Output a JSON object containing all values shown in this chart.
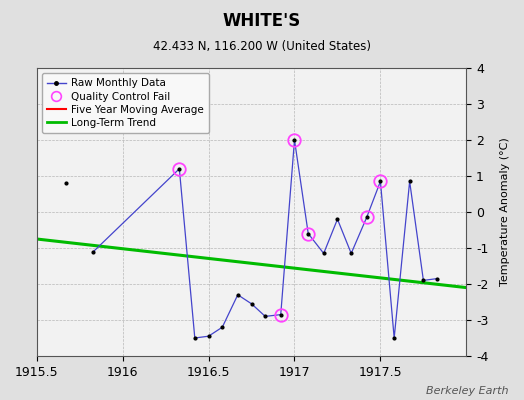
{
  "title": "WHITE'S",
  "subtitle": "42.433 N, 116.200 W (United States)",
  "ylabel": "Temperature Anomaly (°C)",
  "watermark": "Berkeley Earth",
  "xlim": [
    1915.5,
    1918.0
  ],
  "ylim": [
    -4,
    4
  ],
  "background_color": "#e0e0e0",
  "plot_bg_color": "#f2f2f2",
  "isolated_x": [
    1915.67
  ],
  "isolated_y": [
    0.8
  ],
  "connected_x": [
    1915.83,
    1916.33,
    1916.42,
    1916.5,
    1916.58,
    1916.67,
    1916.75,
    1916.83,
    1916.92,
    1917.0,
    1917.08,
    1917.17,
    1917.25,
    1917.33,
    1917.42,
    1917.5,
    1917.58,
    1917.67,
    1917.75,
    1917.83
  ],
  "connected_y": [
    -1.1,
    1.2,
    -3.5,
    -3.45,
    -3.2,
    -2.3,
    -2.55,
    -2.9,
    -2.85,
    2.0,
    -0.6,
    -1.15,
    -0.2,
    -1.15,
    -0.15,
    0.85,
    -3.5,
    0.85,
    -1.9,
    -1.85
  ],
  "qc_fail_x": [
    1916.33,
    1916.92,
    1917.0,
    1917.08,
    1917.42,
    1917.5
  ],
  "qc_fail_y": [
    1.2,
    -2.85,
    2.0,
    -0.6,
    -0.15,
    0.85
  ],
  "trend_x": [
    1915.5,
    1918.0
  ],
  "trend_y": [
    -0.75,
    -2.1
  ],
  "raw_line_color": "#4444cc",
  "raw_marker_color": "#000000",
  "qc_marker_color": "#ff44ff",
  "trend_color": "#00bb00",
  "moving_avg_color": "#ff0000",
  "legend_entries": [
    "Raw Monthly Data",
    "Quality Control Fail",
    "Five Year Moving Average",
    "Long-Term Trend"
  ]
}
